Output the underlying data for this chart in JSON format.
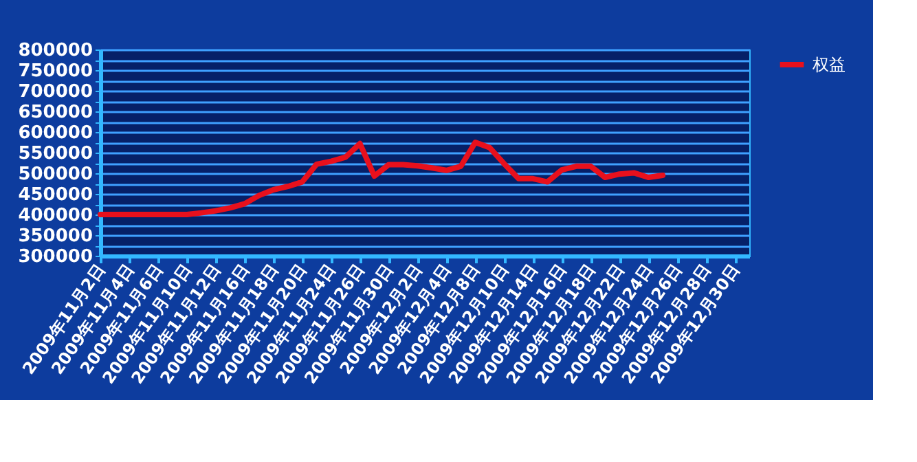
{
  "chart_data": {
    "type": "line",
    "categories": [
      "2009年11月2日",
      null,
      "2009年11月4日",
      null,
      "2009年11月6日",
      null,
      "2009年11月10日",
      null,
      "2009年11月12日",
      null,
      "2009年11月16日",
      null,
      "2009年11月18日",
      null,
      "2009年11月20日",
      null,
      "2009年11月24日",
      null,
      "2009年11月26日",
      null,
      "2009年11月30日",
      null,
      "2009年12月2日",
      null,
      "2009年12月4日",
      null,
      "2009年12月8日",
      null,
      "2009年12月10日",
      null,
      "2009年12月14日",
      null,
      "2009年12月16日",
      null,
      "2009年12月18日",
      null,
      "2009年12月22日",
      null,
      "2009年12月24日",
      null,
      "2009年12月26日",
      null,
      "2009年12月28日",
      null,
      "2009年12月30日",
      null
    ],
    "series": [
      {
        "name": "权益",
        "color": "#e8101c",
        "values": [
          400000,
          400000,
          400000,
          400000,
          400000,
          400000,
          400000,
          404000,
          409000,
          416000,
          426000,
          446000,
          460000,
          468000,
          479000,
          522000,
          529000,
          539000,
          572000,
          493000,
          521000,
          521000,
          518000,
          513000,
          507000,
          517000,
          575000,
          562000,
          523000,
          487000,
          487000,
          479000,
          508000,
          517000,
          517000,
          490000,
          498000,
          501000,
          490000,
          495000,
          null,
          null,
          null,
          null,
          null,
          null
        ]
      }
    ],
    "ylim": [
      300000,
      800000
    ],
    "yticks": [
      300000,
      {
        "value": 325000,
        "label": null
      },
      350000,
      {
        "value": 375000,
        "label": null
      },
      400000,
      {
        "value": 425000,
        "label": null
      },
      450000,
      {
        "value": 475000,
        "label": null
      },
      500000,
      {
        "value": 525000,
        "label": null
      },
      550000,
      {
        "value": 575000,
        "label": null
      },
      600000,
      {
        "value": 625000,
        "label": null
      },
      650000,
      {
        "value": 675000,
        "label": null
      },
      700000,
      {
        "value": 725000,
        "label": null
      },
      750000,
      {
        "value": 775000,
        "label": null
      },
      800000
    ],
    "grid": "y",
    "legend": "right",
    "marker": "none",
    "line_style": "solid"
  }
}
